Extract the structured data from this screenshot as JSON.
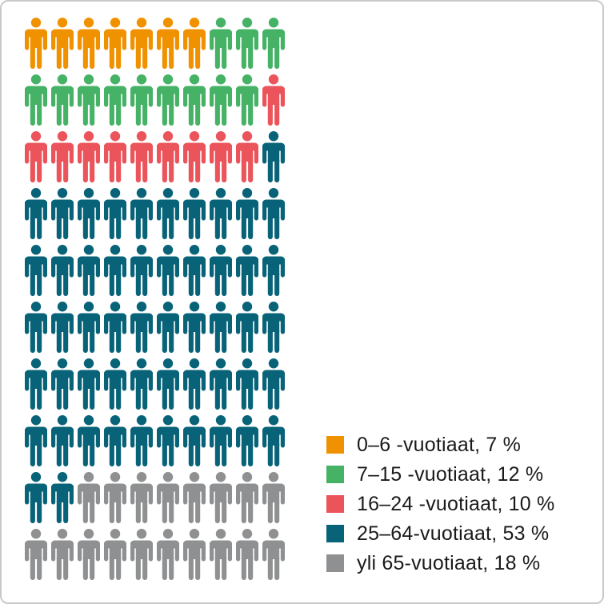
{
  "page": {
    "background": "#ffffff",
    "frame_border_color": "#c9c9c9",
    "text_color": "#1a1a1a"
  },
  "chart_data": {
    "type": "pictogram",
    "title": "",
    "total_units": 100,
    "unit_value_pct": 1,
    "grid": {
      "columns": 10,
      "rows": 10,
      "fill_order": "row-major, left-to-right, top-to-bottom"
    },
    "categories": [
      "0–6 -vuotiaat",
      "7–15 -vuotiaat",
      "16–24 -vuotiaat",
      "25–64-vuotiaat",
      "yli 65-vuotiaat"
    ],
    "series": [
      {
        "label": "0–6 -vuotiaat",
        "percent": 7,
        "icon_count": 7,
        "color": "#F09200",
        "legend_text": "0–6 -vuotiaat, 7 %"
      },
      {
        "label": "7–15 -vuotiaat",
        "percent": 12,
        "icon_count": 12,
        "color": "#45B266",
        "legend_text": "7–15 -vuotiaat, 12 %"
      },
      {
        "label": "16–24 -vuotiaat",
        "percent": 10,
        "icon_count": 10,
        "color": "#EA545A",
        "legend_text": "16–24 -vuotiaat, 10 %"
      },
      {
        "label": "25–64-vuotiaat",
        "percent": 53,
        "icon_count": 53,
        "color": "#086379",
        "legend_text": "25–64-vuotiaat, 53 %"
      },
      {
        "label": "yli 65-vuotiaat",
        "percent": 18,
        "icon_count": 18,
        "color": "#8F9092",
        "legend_text": "yli 65-vuotiaat, 18 %"
      }
    ],
    "legend_position": "bottom-right"
  }
}
